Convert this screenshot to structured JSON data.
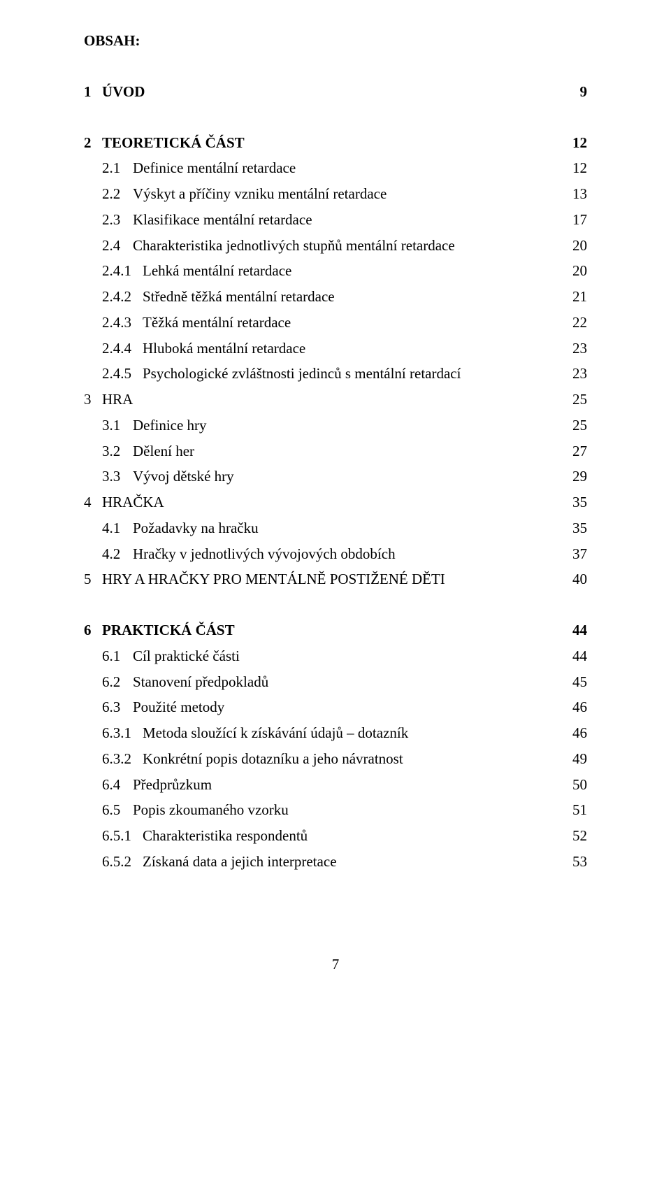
{
  "title": "OBSAH:",
  "footer_page": "7",
  "toc": [
    {
      "level": "top",
      "bold": true,
      "num": "1",
      "text": "ÚVOD",
      "page": "9"
    },
    {
      "gap": true
    },
    {
      "level": "top",
      "bold": true,
      "num": "2",
      "text": "TEORETICKÁ ČÁST",
      "page": "12"
    },
    {
      "level": "l1",
      "bold": false,
      "num": "2.1",
      "text": "Definice mentální retardace",
      "page": "12"
    },
    {
      "level": "l1",
      "bold": false,
      "num": "2.2",
      "text": "Výskyt a příčiny vzniku mentální retardace",
      "page": "13"
    },
    {
      "level": "l1",
      "bold": false,
      "num": "2.3",
      "text": "Klasifikace mentální retardace",
      "page": "17"
    },
    {
      "level": "l1",
      "bold": false,
      "num": "2.4",
      "text": "Charakteristika jednotlivých stupňů mentální retardace",
      "page": "20"
    },
    {
      "level": "l2",
      "bold": false,
      "num": "2.4.1",
      "text": "Lehká mentální retardace",
      "page": "20"
    },
    {
      "level": "l2",
      "bold": false,
      "num": "2.4.2",
      "text": "Středně těžká mentální retardace",
      "page": "21"
    },
    {
      "level": "l2",
      "bold": false,
      "num": "2.4.3",
      "text": "Těžká mentální retardace",
      "page": "22"
    },
    {
      "level": "l2",
      "bold": false,
      "num": "2.4.4",
      "text": "Hluboká mentální retardace",
      "page": "23"
    },
    {
      "level": "l2",
      "bold": false,
      "num": "2.4.5",
      "text": "Psychologické zvláštnosti jedinců s mentální retardací",
      "page": "23"
    },
    {
      "level": "top",
      "bold": false,
      "num": "3",
      "text": "HRA",
      "page": "25"
    },
    {
      "level": "l1",
      "bold": false,
      "num": "3.1",
      "text": "Definice hry",
      "page": "25"
    },
    {
      "level": "l1",
      "bold": false,
      "num": "3.2",
      "text": "Dělení her",
      "page": "27"
    },
    {
      "level": "l1",
      "bold": false,
      "num": "3.3",
      "text": "Vývoj dětské hry",
      "page": "29"
    },
    {
      "level": "top",
      "bold": false,
      "num": "4",
      "text": "HRAČKA",
      "page": "35"
    },
    {
      "level": "l1",
      "bold": false,
      "num": "4.1",
      "text": "Požadavky na hračku",
      "page": "35"
    },
    {
      "level": "l1",
      "bold": false,
      "num": "4.2",
      "text": "Hračky v jednotlivých vývojových obdobích",
      "page": "37"
    },
    {
      "level": "top",
      "bold": false,
      "num": "5",
      "text": "HRY A HRAČKY PRO MENTÁLNĚ POSTIŽENÉ DĚTI",
      "page": "40"
    },
    {
      "gap": true
    },
    {
      "level": "top",
      "bold": true,
      "num": "6",
      "text": "PRAKTICKÁ ČÁST",
      "page": "44"
    },
    {
      "level": "l1",
      "bold": false,
      "num": "6.1",
      "text": "Cíl praktické části",
      "page": "44"
    },
    {
      "level": "l1",
      "bold": false,
      "num": "6.2",
      "text": "Stanovení předpokladů",
      "page": "45"
    },
    {
      "level": "l1",
      "bold": false,
      "num": "6.3",
      "text": "Použité metody",
      "page": "46"
    },
    {
      "level": "l2",
      "bold": false,
      "num": "6.3.1",
      "text": "Metoda sloužící k získávání údajů – dotazník",
      "page": "46"
    },
    {
      "level": "l2",
      "bold": false,
      "num": "6.3.2",
      "text": "Konkrétní popis dotazníku a jeho návratnost",
      "page": "49"
    },
    {
      "level": "l1",
      "bold": false,
      "num": "6.4",
      "text": "Předprůzkum",
      "page": "50"
    },
    {
      "level": "l1",
      "bold": false,
      "num": "6.5",
      "text": "Popis zkoumaného vzorku",
      "page": "51"
    },
    {
      "level": "l2",
      "bold": false,
      "num": "6.5.1",
      "text": "Charakteristika respondentů",
      "page": "52"
    },
    {
      "level": "l2",
      "bold": false,
      "num": "6.5.2",
      "text": "Získaná data a jejich interpretace",
      "page": "53"
    }
  ]
}
